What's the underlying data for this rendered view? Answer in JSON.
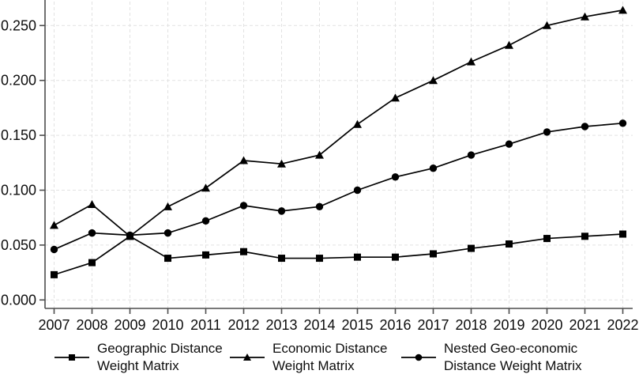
{
  "chart_data": {
    "type": "line",
    "x": [
      2007,
      2008,
      2009,
      2010,
      2011,
      2012,
      2013,
      2014,
      2015,
      2016,
      2017,
      2018,
      2019,
      2020,
      2021,
      2022
    ],
    "series": [
      {
        "id": "geographic-distance-weight-matrix",
        "name": "Geographic Distance Weight Matrix",
        "marker": "square",
        "values": [
          0.023,
          0.034,
          0.058,
          0.038,
          0.041,
          0.044,
          0.038,
          0.038,
          0.039,
          0.039,
          0.042,
          0.047,
          0.051,
          0.056,
          0.058,
          0.06
        ]
      },
      {
        "id": "economic-distance-weight-matrix",
        "name": "Economic Distance Weight Matrix",
        "marker": "triangle",
        "values": [
          0.068,
          0.087,
          0.058,
          0.085,
          0.102,
          0.127,
          0.124,
          0.132,
          0.16,
          0.184,
          0.2,
          0.217,
          0.232,
          0.25,
          0.258,
          0.264
        ]
      },
      {
        "id": "nested-geo-economic-distance-weight-matrix",
        "name": "Nested Geo-economic Distance Weight Matrix",
        "marker": "circle",
        "values": [
          0.046,
          0.061,
          0.059,
          0.061,
          0.072,
          0.086,
          0.081,
          0.085,
          0.1,
          0.112,
          0.12,
          0.132,
          0.142,
          0.153,
          0.158,
          0.161
        ]
      }
    ],
    "title": "",
    "xlabel": "",
    "ylabel": "",
    "ylim": [
      0,
      0.272
    ],
    "y_tick_values": [
      0,
      0.05,
      0.1,
      0.15,
      0.2,
      0.25
    ],
    "y_tick_labels": [
      "0.000",
      "0.050",
      "0.100",
      "0.150",
      "0.200",
      "0.250"
    ],
    "x_tick_labels": [
      "2007",
      "2008",
      "2009",
      "2010",
      "2011",
      "2012",
      "2013",
      "2014",
      "2015",
      "2016",
      "2017",
      "2018",
      "2019",
      "2020",
      "2021",
      "2022"
    ],
    "grid": true,
    "grid_style": "dashed",
    "legend_position": "bottom",
    "line_color": "#000000",
    "marker_color": "#000000",
    "grid_color": "#e2e2e2",
    "axis_color": "#4d4d4d",
    "background_color": "#ffffff"
  },
  "legend": {
    "items": [
      {
        "marker": "square",
        "line1": "Geographic Distance",
        "line2": "Weight Matrix"
      },
      {
        "marker": "triangle",
        "line1": "Economic Distance",
        "line2": "Weight Matrix"
      },
      {
        "marker": "circle",
        "line1": "Nested Geo-economic",
        "line2": "Distance Weight Matrix"
      }
    ]
  }
}
